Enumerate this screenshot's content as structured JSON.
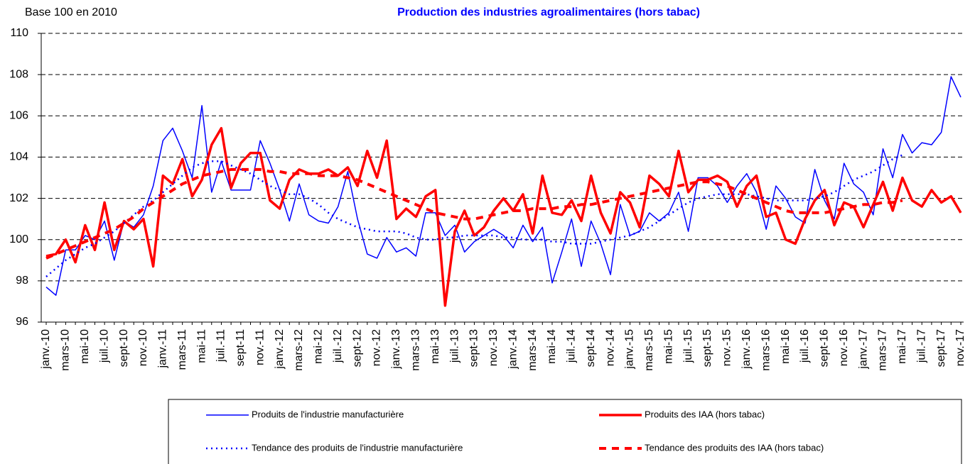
{
  "chart_data": {
    "type": "line",
    "title": "Production des industries agroalimentaires (hors tabac)",
    "y_label": "Base 100 en 2010",
    "categories": [
      "janv.-10",
      null,
      "mars-10",
      null,
      "mai-10",
      null,
      "juil.-10",
      null,
      "sept-10",
      null,
      "nov.-10",
      null,
      "janv.-11",
      null,
      "mars-11",
      null,
      "mai-11",
      null,
      "juil.-11",
      null,
      "sept-11",
      null,
      "nov.-11",
      null,
      "janv.-12",
      null,
      "mars-12",
      null,
      "mai-12",
      null,
      "juil.-12",
      null,
      "sept-12",
      null,
      "nov.-12",
      null,
      "janv.-13",
      null,
      "mars-13",
      null,
      "mai-13",
      null,
      "juil.-13",
      null,
      "sept-13",
      null,
      "nov.-13",
      null,
      "janv.-14",
      null,
      "mars-14",
      null,
      "mai-14",
      null,
      "juil.-14",
      null,
      "sept-14",
      null,
      "nov.-14",
      null,
      "janv.-15",
      null,
      "mars-15",
      null,
      "mai-15",
      null,
      "juil.-15",
      null,
      "sept-15",
      null,
      "nov.-15",
      null,
      "janv.-16",
      null,
      "mars-16",
      null,
      "mai-16",
      null,
      "juil.-16",
      null,
      "sept-16",
      null,
      "nov.-16",
      null,
      "janv.-17",
      null,
      "mars-17",
      null,
      "mai-17",
      null,
      "juil.-17",
      null,
      "sept-17",
      null,
      "nov.-17"
    ],
    "ylim": [
      96,
      110
    ],
    "yticks": [
      96,
      98,
      100,
      102,
      104,
      106,
      108,
      110
    ],
    "grid": true,
    "series": [
      {
        "name": "Produits de l'industrie manufacturière",
        "color": "#0000ff",
        "style": "solid",
        "width": 1.5,
        "values": [
          97.7,
          97.3,
          99.5,
          99.5,
          100.2,
          100.0,
          100.9,
          99.0,
          100.9,
          100.6,
          101.2,
          102.6,
          104.8,
          105.4,
          104.3,
          103.0,
          106.5,
          102.3,
          103.8,
          102.4,
          102.4,
          102.4,
          104.8,
          103.7,
          102.4,
          100.9,
          102.7,
          101.2,
          100.9,
          100.8,
          101.6,
          103.3,
          101.0,
          99.3,
          99.1,
          100.1,
          99.4,
          99.6,
          99.2,
          101.3,
          101.3,
          100.2,
          100.7,
          99.4,
          99.9,
          100.2,
          100.5,
          100.2,
          99.6,
          100.7,
          99.9,
          100.6,
          97.9,
          99.4,
          101.0,
          98.7,
          100.9,
          99.8,
          98.3,
          101.7,
          100.2,
          100.4,
          101.3,
          100.9,
          101.3,
          102.3,
          100.4,
          103.0,
          103.0,
          102.6,
          101.8,
          102.6,
          103.2,
          102.3,
          100.5,
          102.6,
          102.0,
          101.1,
          100.8,
          103.4,
          101.9,
          101.0,
          103.7,
          102.7,
          102.3,
          101.2,
          104.4,
          103.0,
          105.1,
          104.2,
          104.7,
          104.6,
          105.2,
          107.9,
          106.9
        ]
      },
      {
        "name": "Produits des IAA (hors tabac)",
        "color": "#ff0000",
        "style": "solid",
        "width": 3.5,
        "values": [
          99.2,
          99.3,
          100.0,
          98.9,
          100.7,
          99.5,
          101.8,
          99.5,
          100.9,
          100.5,
          101.0,
          98.7,
          103.1,
          102.7,
          103.9,
          102.1,
          102.9,
          104.6,
          105.4,
          102.5,
          103.7,
          104.2,
          104.2,
          101.9,
          101.5,
          102.9,
          103.4,
          103.2,
          103.2,
          103.4,
          103.1,
          103.5,
          102.6,
          104.3,
          103.0,
          104.8,
          101.0,
          101.5,
          101.1,
          102.1,
          102.4,
          96.8,
          100.4,
          101.4,
          100.2,
          100.6,
          101.4,
          102.0,
          101.4,
          102.2,
          100.3,
          103.1,
          101.3,
          101.2,
          101.9,
          100.9,
          103.1,
          101.3,
          100.3,
          102.3,
          101.8,
          100.6,
          103.1,
          102.7,
          102.1,
          104.3,
          102.3,
          102.9,
          102.9,
          103.1,
          102.8,
          101.6,
          102.6,
          103.1,
          101.1,
          101.3,
          100.0,
          99.8,
          101.0,
          101.9,
          102.4,
          100.7,
          101.8,
          101.6,
          100.6,
          101.7,
          102.8,
          101.4,
          103.0,
          101.9,
          101.6,
          102.4,
          101.8,
          102.1,
          101.3
        ]
      },
      {
        "name": "Tendance des produits de l'industrie manufacturière",
        "color": "#0000ff",
        "style": "dotted",
        "width": 2.5,
        "values": [
          98.2,
          98.6,
          99.0,
          99.3,
          99.6,
          99.8,
          100.1,
          100.4,
          100.8,
          101.2,
          101.6,
          101.9,
          102.3,
          102.7,
          103.1,
          103.5,
          103.7,
          103.8,
          103.8,
          103.6,
          103.4,
          103.2,
          102.9,
          102.6,
          102.4,
          102.2,
          102.2,
          102.0,
          101.7,
          101.3,
          101.0,
          100.8,
          100.6,
          100.5,
          100.4,
          100.4,
          100.4,
          100.3,
          100.1,
          100.0,
          100.0,
          100.1,
          100.1,
          100.2,
          100.2,
          100.2,
          100.2,
          100.1,
          100.1,
          100.0,
          100.0,
          100.0,
          99.9,
          99.9,
          99.8,
          99.8,
          99.8,
          99.9,
          100.0,
          100.1,
          100.2,
          100.4,
          100.6,
          100.9,
          101.2,
          101.5,
          101.8,
          102.0,
          102.1,
          102.2,
          102.2,
          102.2,
          102.2,
          102.1,
          102.0,
          101.9,
          101.9,
          101.9,
          101.9,
          102.0,
          102.1,
          102.3,
          102.6,
          102.9,
          103.1,
          103.3,
          103.6,
          103.9,
          104.1,
          null,
          null,
          null,
          null,
          null,
          null
        ]
      },
      {
        "name": "Tendance des produits des IAA (hors tabac)",
        "color": "#ff0000",
        "style": "dashed",
        "width": 4,
        "values": [
          99.1,
          99.3,
          99.5,
          99.7,
          99.9,
          100.1,
          100.3,
          100.5,
          100.8,
          101.1,
          101.5,
          101.8,
          102.1,
          102.4,
          102.7,
          102.9,
          103.1,
          103.2,
          103.3,
          103.4,
          103.4,
          103.4,
          103.4,
          103.3,
          103.3,
          103.2,
          103.2,
          103.2,
          103.1,
          103.1,
          103.1,
          103.0,
          102.9,
          102.7,
          102.5,
          102.3,
          102.1,
          101.9,
          101.7,
          101.5,
          101.3,
          101.2,
          101.1,
          101.0,
          101.0,
          101.1,
          101.2,
          101.3,
          101.4,
          101.4,
          101.5,
          101.5,
          101.5,
          101.6,
          101.6,
          101.7,
          101.7,
          101.8,
          101.9,
          102.0,
          102.1,
          102.2,
          102.3,
          102.4,
          102.5,
          102.6,
          102.7,
          102.8,
          102.8,
          102.7,
          102.6,
          102.4,
          102.2,
          102.0,
          101.8,
          101.6,
          101.4,
          101.3,
          101.3,
          101.3,
          101.3,
          101.4,
          101.5,
          101.6,
          101.7,
          101.7,
          101.8,
          101.8,
          101.9,
          null,
          null,
          null,
          null,
          null,
          null
        ]
      }
    ]
  }
}
